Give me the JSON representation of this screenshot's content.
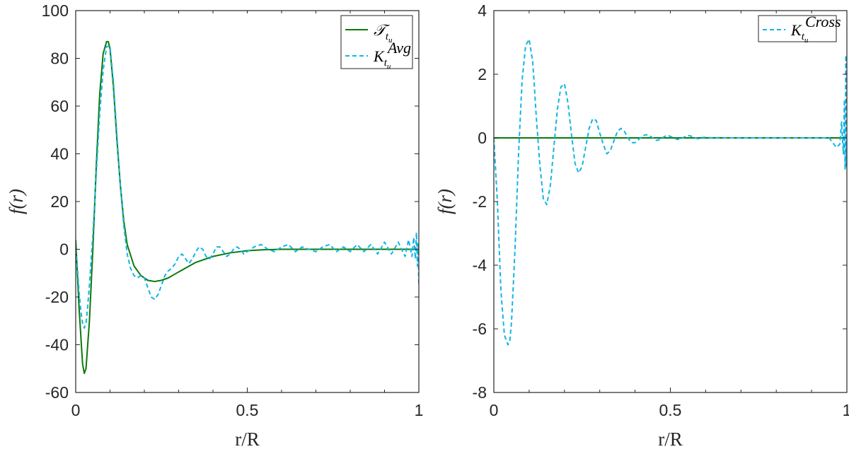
{
  "colors": {
    "green": "#0a7a0a",
    "cyan": "#12b5e5",
    "axis": "#262626"
  },
  "chart_data": [
    {
      "type": "line",
      "xlabel": "r/R",
      "ylabel": "f(r)",
      "xlim": [
        0,
        1
      ],
      "ylim": [
        -60,
        100
      ],
      "xticks": [
        0,
        0.5,
        1
      ],
      "xtick_labels": [
        "0",
        "0.5",
        "1"
      ],
      "yticks": [
        -60,
        -40,
        -20,
        0,
        20,
        40,
        60,
        80,
        100
      ],
      "ytick_labels": [
        "-60",
        "-40",
        "-20",
        "0",
        "20",
        "40",
        "60",
        "80",
        "100"
      ],
      "legend_position": "top-right",
      "series": [
        {
          "name": "T_{t_u}",
          "legend_main": "𝒯",
          "legend_sub": "t",
          "legend_subsub": "u",
          "style": "solid",
          "color": "#0a7a0a",
          "x": [
            0,
            0.01,
            0.02,
            0.025,
            0.03,
            0.04,
            0.05,
            0.06,
            0.07,
            0.08,
            0.09,
            0.095,
            0.1,
            0.11,
            0.12,
            0.13,
            0.14,
            0.15,
            0.17,
            0.19,
            0.21,
            0.23,
            0.25,
            0.27,
            0.3,
            0.35,
            0.4,
            0.45,
            0.5,
            0.55,
            0.6,
            0.7,
            0.8,
            0.9,
            1.0
          ],
          "y": [
            4,
            -25,
            -48,
            -52,
            -50,
            -30,
            0,
            35,
            65,
            82,
            87,
            87,
            84,
            68,
            46,
            27,
            12,
            2,
            -7,
            -11,
            -13,
            -13.5,
            -13,
            -12,
            -9.5,
            -5.5,
            -3,
            -1.5,
            -0.6,
            -0.2,
            0,
            0,
            0,
            0,
            0
          ]
        },
        {
          "name": "K_{t_u}^{Avg}",
          "legend_main": "K",
          "legend_sub": "t",
          "legend_subsub": "u",
          "legend_sup": "Avg",
          "style": "dashed",
          "color": "#12b5e5",
          "x": [
            0,
            0.005,
            0.01,
            0.015,
            0.02,
            0.025,
            0.03,
            0.035,
            0.04,
            0.05,
            0.06,
            0.07,
            0.08,
            0.09,
            0.1,
            0.11,
            0.12,
            0.13,
            0.14,
            0.15,
            0.16,
            0.17,
            0.18,
            0.19,
            0.2,
            0.21,
            0.22,
            0.23,
            0.24,
            0.25,
            0.26,
            0.27,
            0.28,
            0.29,
            0.3,
            0.31,
            0.32,
            0.33,
            0.34,
            0.35,
            0.36,
            0.37,
            0.38,
            0.39,
            0.4,
            0.41,
            0.42,
            0.43,
            0.44,
            0.45,
            0.46,
            0.47,
            0.48,
            0.49,
            0.5,
            0.52,
            0.54,
            0.56,
            0.58,
            0.6,
            0.62,
            0.64,
            0.66,
            0.68,
            0.7,
            0.72,
            0.74,
            0.76,
            0.78,
            0.8,
            0.82,
            0.84,
            0.86,
            0.88,
            0.9,
            0.92,
            0.94,
            0.96,
            0.97,
            0.98,
            0.985,
            0.99,
            0.993,
            0.996,
            0.998,
            1.0
          ],
          "y": [
            0,
            -8,
            -18,
            -26,
            -31,
            -33,
            -31,
            -24,
            -15,
            6,
            32,
            57,
            75,
            85,
            85,
            70,
            48,
            27,
            10,
            -2,
            -8,
            -11,
            -12,
            -11,
            -12,
            -16,
            -20,
            -21,
            -19,
            -15,
            -11,
            -9,
            -8,
            -6,
            -3,
            -2,
            -4,
            -6,
            -4,
            -1,
            1,
            0,
            -3,
            -4,
            -2,
            1,
            1,
            -1,
            -3,
            -2,
            0,
            1,
            0,
            -2,
            -1,
            1,
            2,
            0,
            -1,
            1,
            2,
            -1,
            1,
            0,
            -1,
            1,
            2,
            -1,
            1,
            -1,
            2,
            -1,
            2,
            -2,
            3,
            -2,
            3,
            -3,
            4,
            -3,
            5,
            -4,
            7,
            -7,
            3,
            -15
          ]
        }
      ]
    },
    {
      "type": "line",
      "xlabel": "r/R",
      "ylabel": "f(r)",
      "xlim": [
        0,
        1
      ],
      "ylim": [
        -8,
        4
      ],
      "xticks": [
        0,
        0.5,
        1
      ],
      "xtick_labels": [
        "0",
        "0.5",
        "1"
      ],
      "yticks": [
        -8,
        -6,
        -4,
        -2,
        0,
        2,
        4
      ],
      "ytick_labels": [
        "-8",
        "-6",
        "-4",
        "-2",
        "0",
        "2",
        "4"
      ],
      "legend_position": "top-right",
      "series": [
        {
          "name": "zero",
          "style": "solid",
          "color": "#0a7a0a",
          "legend": false,
          "x": [
            0,
            1
          ],
          "y": [
            0,
            0
          ]
        },
        {
          "name": "K_{t_u}^{Cross}",
          "legend_main": "K",
          "legend_sub": "t",
          "legend_subsub": "u",
          "legend_sup": "Cross",
          "style": "dashed",
          "color": "#12b5e5",
          "x": [
            0,
            0.01,
            0.02,
            0.03,
            0.04,
            0.045,
            0.05,
            0.06,
            0.07,
            0.08,
            0.09,
            0.1,
            0.11,
            0.115,
            0.12,
            0.13,
            0.14,
            0.15,
            0.16,
            0.17,
            0.18,
            0.19,
            0.2,
            0.21,
            0.22,
            0.23,
            0.24,
            0.25,
            0.26,
            0.27,
            0.28,
            0.29,
            0.3,
            0.31,
            0.32,
            0.33,
            0.34,
            0.35,
            0.36,
            0.37,
            0.38,
            0.39,
            0.4,
            0.41,
            0.42,
            0.43,
            0.44,
            0.45,
            0.46,
            0.47,
            0.48,
            0.49,
            0.5,
            0.51,
            0.52,
            0.53,
            0.54,
            0.55,
            0.56,
            0.57,
            0.58,
            0.59,
            0.6,
            0.62,
            0.64,
            0.66,
            0.7,
            0.75,
            0.8,
            0.85,
            0.9,
            0.95,
            0.97,
            0.98,
            0.985,
            0.99,
            0.993,
            0.995,
            0.997,
            0.999,
            1.0
          ],
          "y": [
            0,
            -2.0,
            -4.8,
            -6.2,
            -6.5,
            -6.4,
            -5.8,
            -3.5,
            -0.5,
            1.8,
            2.9,
            3.1,
            2.4,
            1.6,
            0.7,
            -0.8,
            -1.9,
            -2.1,
            -1.5,
            -0.3,
            0.9,
            1.6,
            1.7,
            1.1,
            0.1,
            -0.8,
            -1.1,
            -0.9,
            -0.3,
            0.3,
            0.6,
            0.55,
            0.15,
            -0.2,
            -0.5,
            -0.4,
            -0.1,
            0.2,
            0.3,
            0.2,
            0,
            -0.15,
            -0.15,
            -0.05,
            0.05,
            0.1,
            0.08,
            0,
            -0.08,
            -0.05,
            0.02,
            0.08,
            0.05,
            0,
            -0.05,
            -0.03,
            0.03,
            0.08,
            0.05,
            0,
            -0.03,
            0.01,
            0.02,
            0,
            0.01,
            0,
            0,
            0,
            0,
            0,
            0,
            0,
            -0.3,
            -0.2,
            0.5,
            -0.5,
            1.2,
            -1.0,
            2.6,
            -0.9,
            0
          ]
        }
      ]
    }
  ]
}
